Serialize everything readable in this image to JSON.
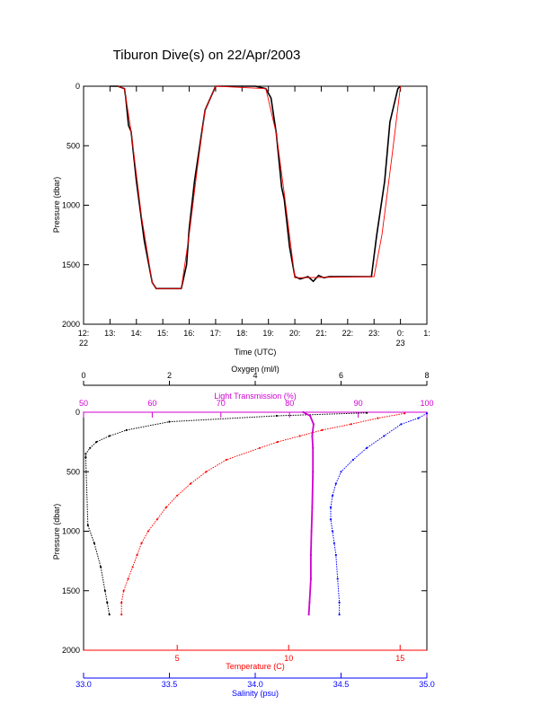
{
  "chart_data": [
    {
      "type": "line",
      "title": "Tiburon Dive(s) on 22/Apr/2003",
      "xlabel": "Time (UTC)",
      "ylabel": "Pressure (dbar)",
      "xlim": [
        12.0,
        25.0
      ],
      "ylim": [
        2000,
        0
      ],
      "x_ticks": [
        {
          "v": 12,
          "l1": "12:",
          "l2": "22"
        },
        {
          "v": 13,
          "l1": "13:",
          "l2": ""
        },
        {
          "v": 14,
          "l1": "14:",
          "l2": ""
        },
        {
          "v": 15,
          "l1": "15:",
          "l2": ""
        },
        {
          "v": 16,
          "l1": "16:",
          "l2": ""
        },
        {
          "v": 17,
          "l1": "17:",
          "l2": ""
        },
        {
          "v": 18,
          "l1": "18:",
          "l2": ""
        },
        {
          "v": 19,
          "l1": "19:",
          "l2": ""
        },
        {
          "v": 20,
          "l1": "20:",
          "l2": ""
        },
        {
          "v": 21,
          "l1": "21:",
          "l2": ""
        },
        {
          "v": 22,
          "l1": "22:",
          "l2": ""
        },
        {
          "v": 23,
          "l1": "23:",
          "l2": ""
        },
        {
          "v": 24,
          "l1": "0:",
          "l2": "23"
        },
        {
          "v": 25,
          "l1": "1:",
          "l2": ""
        }
      ],
      "y_ticks": [
        0,
        500,
        1000,
        1500,
        2000
      ],
      "colors": {
        "measured": "#000000",
        "smoothed": "#ff0000"
      },
      "series": [
        {
          "key": "measured",
          "x": [
            13.0,
            13.3,
            13.55,
            13.6,
            13.7,
            13.8,
            14.0,
            14.3,
            14.6,
            14.75,
            15.0,
            15.2,
            15.7,
            15.9,
            16.0,
            16.2,
            16.6,
            17.0,
            17.3,
            18.0,
            18.5,
            18.9,
            19.1,
            19.3,
            19.5,
            19.6,
            19.7,
            19.8,
            20.0,
            20.2,
            20.5,
            20.7,
            20.9,
            21.1,
            21.3,
            21.6,
            22.0,
            22.5,
            22.9,
            23.1,
            23.4,
            23.6,
            23.9,
            24.0
          ],
          "y": [
            0,
            0,
            20,
            100,
            330,
            380,
            800,
            1300,
            1650,
            1700,
            1700,
            1700,
            1700,
            1500,
            1200,
            800,
            200,
            0,
            0,
            0,
            0,
            20,
            100,
            400,
            850,
            950,
            1150,
            1350,
            1600,
            1620,
            1600,
            1640,
            1590,
            1610,
            1600,
            1600,
            1600,
            1600,
            1600,
            1250,
            800,
            300,
            20,
            0
          ]
        },
        {
          "key": "smoothed",
          "x": [
            13.3,
            13.55,
            13.8,
            14.2,
            14.6,
            14.75,
            15.7,
            16.0,
            16.3,
            16.6,
            17.0,
            18.9,
            19.3,
            19.6,
            20.0,
            23.0,
            23.3,
            23.7,
            24.0
          ],
          "y": [
            0,
            20,
            380,
            1100,
            1650,
            1700,
            1700,
            1250,
            700,
            200,
            0,
            20,
            400,
            900,
            1610,
            1600,
            1250,
            550,
            0
          ]
        }
      ]
    },
    {
      "type": "scatter",
      "ylabel": "Pressure (dbar)",
      "ylim": [
        2000,
        0
      ],
      "y_ticks": [
        0,
        500,
        1000,
        1500,
        2000
      ],
      "axes": {
        "oxygen": {
          "label": "Oxygen (ml/l)",
          "range": [
            0,
            8
          ],
          "ticks": [
            0,
            2,
            4,
            6,
            8
          ],
          "color": "#000000"
        },
        "light": {
          "label": "Light Transmission (%)",
          "range": [
            50,
            100
          ],
          "ticks": [
            50,
            60,
            70,
            80,
            90,
            100
          ],
          "color": "#d000d0"
        },
        "temperature": {
          "label": "Temperature (C)",
          "range": [
            0.8,
            16.2
          ],
          "ticks": [
            5,
            10,
            15
          ],
          "color": "#ff0000"
        },
        "salinity": {
          "label": "Salinity (psu)",
          "range": [
            33.0,
            35.0
          ],
          "ticks": [
            "33.0",
            "33.5",
            "34.0",
            "34.5",
            "35.0"
          ],
          "color": "#0000ff"
        }
      },
      "series": [
        {
          "key": "oxygen",
          "name": "Oxygen (ml/l)",
          "color": "#000000",
          "pressure": [
            5,
            30,
            80,
            150,
            200,
            250,
            300,
            350,
            380,
            950,
            1100,
            1300,
            1500,
            1600,
            1700
          ],
          "value": [
            6.6,
            4.5,
            2.0,
            1.0,
            0.6,
            0.3,
            0.15,
            0.05,
            0.05,
            0.1,
            0.25,
            0.4,
            0.5,
            0.55,
            0.6
          ]
        },
        {
          "key": "light",
          "name": "Light Transmission (%)",
          "color": "#d000d0",
          "pressure": [
            0,
            30,
            100,
            200,
            300,
            500,
            800,
            1000,
            1200,
            1400,
            1600,
            1700
          ],
          "value": [
            82.0,
            83.0,
            83.5,
            83.3,
            83.4,
            83.4,
            83.3,
            83.2,
            83.1,
            83.1,
            82.9,
            82.8
          ]
        },
        {
          "key": "temperature",
          "name": "Temperature (C)",
          "color": "#ff0000",
          "pressure": [
            10,
            50,
            100,
            150,
            200,
            250,
            300,
            400,
            500,
            600,
            700,
            800,
            900,
            1000,
            1100,
            1200,
            1300,
            1400,
            1500,
            1600,
            1700
          ],
          "value": [
            15.2,
            14.0,
            12.8,
            11.5,
            10.5,
            9.5,
            8.7,
            7.2,
            6.3,
            5.6,
            5.0,
            4.5,
            4.1,
            3.7,
            3.4,
            3.2,
            3.0,
            2.8,
            2.6,
            2.5,
            2.5
          ]
        },
        {
          "key": "salinity",
          "name": "Salinity (psu)",
          "color": "#0000ff",
          "pressure": [
            10,
            50,
            100,
            200,
            300,
            400,
            500,
            600,
            700,
            800,
            900,
            1000,
            1100,
            1200,
            1400,
            1600,
            1700
          ],
          "value": [
            35.0,
            34.95,
            34.85,
            34.75,
            34.65,
            34.57,
            34.5,
            34.47,
            34.45,
            34.44,
            34.44,
            34.45,
            34.46,
            34.47,
            34.48,
            34.49,
            34.49
          ]
        }
      ]
    }
  ]
}
